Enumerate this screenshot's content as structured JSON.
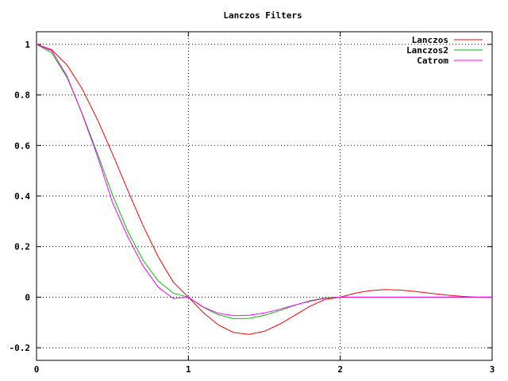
{
  "chart_data": {
    "type": "line",
    "title": "Lanczos Filters",
    "xlabel": "",
    "ylabel": "",
    "xlim": [
      0,
      3
    ],
    "ylim": [
      -0.25,
      1.05
    ],
    "x_ticks": [
      0,
      1,
      2,
      3
    ],
    "x_tick_labels": [
      "0",
      "1",
      "2",
      "3"
    ],
    "y_ticks": [
      -0.2,
      0,
      0.2,
      0.4,
      0.6,
      0.8,
      1
    ],
    "y_tick_labels": [
      "-0.2",
      "0",
      "0.2",
      "0.4",
      "0.6",
      "0.8",
      "1"
    ],
    "grid": true,
    "legend_position": "top-right",
    "x": [
      0,
      0.1,
      0.2,
      0.3,
      0.4,
      0.5,
      0.6,
      0.7,
      0.8,
      0.9,
      1.0,
      1.1,
      1.2,
      1.3,
      1.4,
      1.5,
      1.6,
      1.7,
      1.8,
      1.9,
      2.0,
      2.1,
      2.2,
      2.3,
      2.4,
      2.5,
      2.6,
      2.7,
      2.8,
      2.9,
      3.0
    ],
    "series": [
      {
        "name": "Lanczos",
        "color": "#ff0000",
        "values": [
          1.0,
          0.979,
          0.919,
          0.825,
          0.704,
          0.567,
          0.424,
          0.285,
          0.161,
          0.06,
          0.0,
          -0.062,
          -0.111,
          -0.14,
          -0.147,
          -0.135,
          -0.107,
          -0.072,
          -0.036,
          -0.009,
          0.0,
          0.016,
          0.026,
          0.03,
          0.028,
          0.022,
          0.015,
          0.008,
          0.003,
          0.0,
          0.0
        ]
      },
      {
        "name": "Lanczos2",
        "color": "#00c000",
        "values": [
          1.0,
          0.967,
          0.87,
          0.728,
          0.57,
          0.405,
          0.262,
          0.148,
          0.065,
          0.016,
          0.0,
          -0.041,
          -0.07,
          -0.085,
          -0.084,
          -0.072,
          -0.053,
          -0.032,
          -0.014,
          -0.003,
          0.0,
          0.0,
          0.0,
          0.0,
          0.0,
          0.0,
          0.0,
          0.0,
          0.0,
          0.0,
          0.0
        ]
      },
      {
        "name": "Catrom",
        "color": "#ff00ff",
        "values": [
          1.0,
          0.975,
          0.875,
          0.725,
          0.56,
          0.375,
          0.24,
          0.125,
          0.04,
          -0.005,
          0.0,
          -0.04,
          -0.064,
          -0.0735,
          -0.072,
          -0.0625,
          -0.048,
          -0.0315,
          -0.016,
          -0.0045,
          0.0,
          0.0,
          0.0,
          0.0,
          0.0,
          0.0,
          0.0,
          0.0,
          0.0,
          0.0,
          0.0
        ]
      }
    ]
  }
}
